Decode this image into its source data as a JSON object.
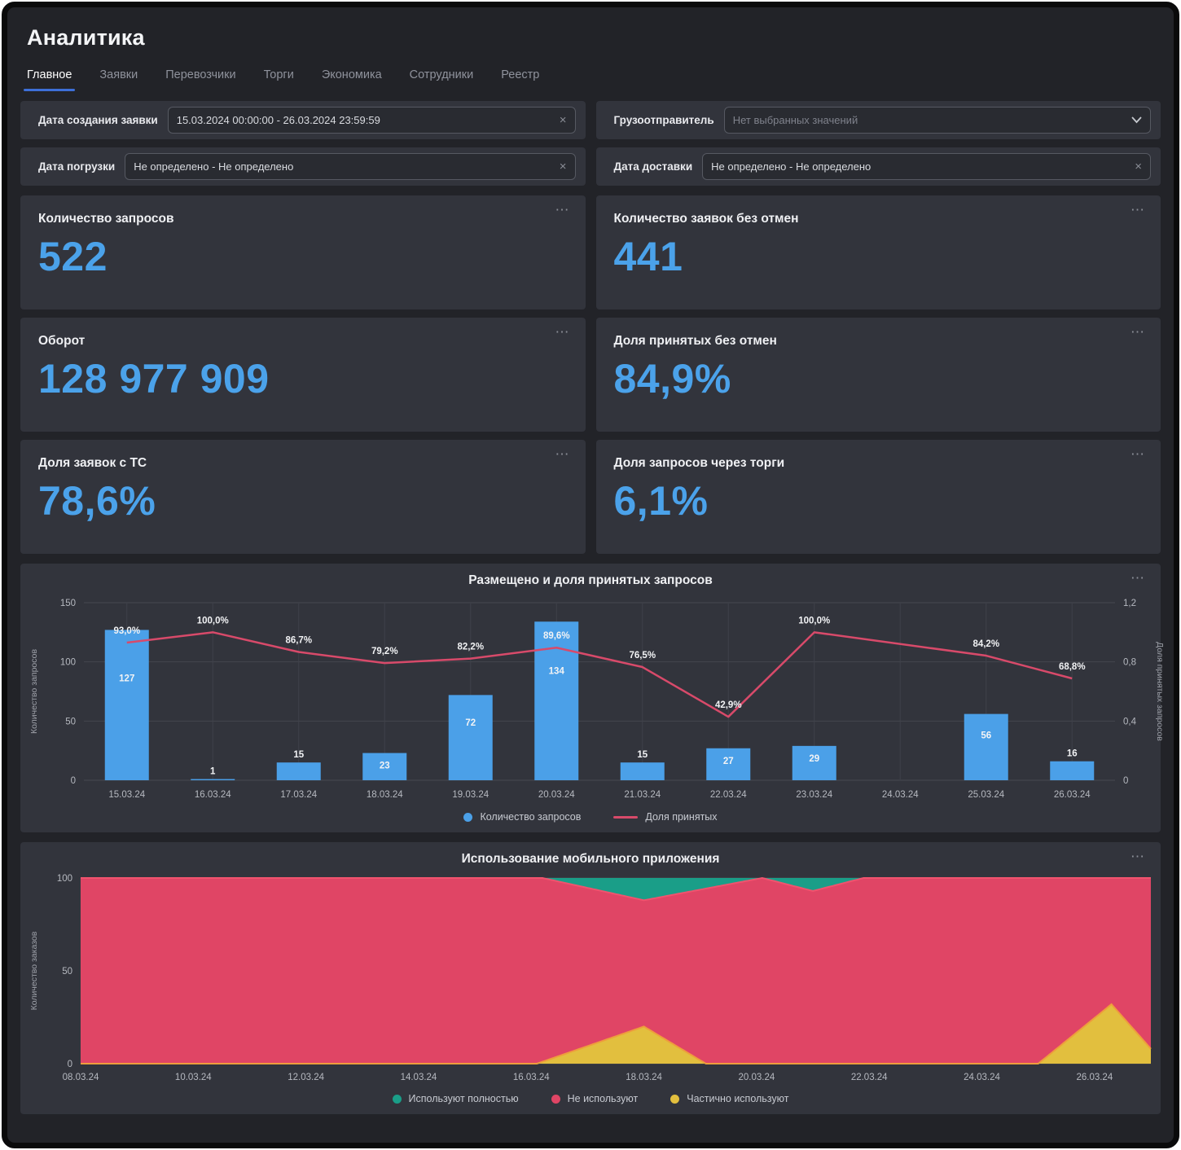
{
  "page": {
    "title": "Аналитика"
  },
  "tabs": [
    {
      "label": "Главное",
      "active": true
    },
    {
      "label": "Заявки",
      "active": false
    },
    {
      "label": "Перевозчики",
      "active": false
    },
    {
      "label": "Торги",
      "active": false
    },
    {
      "label": "Экономика",
      "active": false
    },
    {
      "label": "Сотрудники",
      "active": false
    },
    {
      "label": "Реестр",
      "active": false
    }
  ],
  "filters": [
    {
      "label": "Дата создания заявки",
      "value": "15.03.2024 00:00:00 - 26.03.2024 23:59:59",
      "is_placeholder": false,
      "icon": "clear"
    },
    {
      "label": "Грузоотправитель",
      "value": "Нет выбранных значений",
      "is_placeholder": true,
      "icon": "chevron"
    },
    {
      "label": "Дата погрузки",
      "value": "Не определено - Не определено",
      "is_placeholder": false,
      "icon": "clear"
    },
    {
      "label": "Дата доставки",
      "value": "Не определено - Не определено",
      "is_placeholder": false,
      "icon": "clear"
    }
  ],
  "kpi_cards": [
    {
      "title": "Количество запросов",
      "value": "522"
    },
    {
      "title": "Количество заявок без отмен",
      "value": "441"
    },
    {
      "title": "Оборот",
      "value": "128 977 909"
    },
    {
      "title": "Доля принятых без отмен",
      "value": "84,9%"
    },
    {
      "title": "Доля заявок с ТС",
      "value": "78,6%"
    },
    {
      "title": "Доля запросов через торги",
      "value": "6,1%"
    }
  ],
  "colors": {
    "accent_blue": "#4ba2ea",
    "bar_blue": "#4ba0e8",
    "line_red": "#d84a6a",
    "area_red": "#e04565",
    "area_green": "#1a9e88",
    "area_yellow": "#e2bf3e",
    "area_yellow_stroke": "#ee9d3c",
    "grid": "#45474f",
    "tick_text": "#b6b9c0"
  },
  "chart_data": [
    {
      "id": "requests",
      "type": "bar",
      "title": "Размещено и доля принятых запросов",
      "categories": [
        "15.03.24",
        "16.03.24",
        "17.03.24",
        "18.03.24",
        "19.03.24",
        "20.03.24",
        "21.03.24",
        "22.03.24",
        "23.03.24",
        "24.03.24",
        "25.03.24",
        "26.03.24"
      ],
      "series": [
        {
          "name": "Количество запросов",
          "kind": "bar",
          "color": "#4ba0e8",
          "values": [
            127,
            1,
            15,
            23,
            72,
            134,
            15,
            27,
            29,
            null,
            56,
            16
          ]
        },
        {
          "name": "Доля принятых",
          "kind": "line",
          "color": "#d84a6a",
          "values": [
            0.93,
            1.0,
            0.867,
            0.792,
            0.822,
            0.896,
            0.765,
            0.429,
            1.0,
            null,
            0.842,
            0.688
          ],
          "labels": [
            "93,0%",
            "100,0%",
            "86,7%",
            "79,2%",
            "82,2%",
            "89,6%",
            "76,5%",
            "42,9%",
            "100,0%",
            null,
            "84,2%",
            "68,8%"
          ]
        }
      ],
      "ylabel_left": "Количество запросов",
      "ylim_left": [
        0,
        150
      ],
      "yticks_left": [
        0,
        50,
        100,
        150
      ],
      "ylabel_right": "Доля принятых запросов",
      "ylim_right": [
        0,
        1.2
      ],
      "yticks_right_values": [
        0,
        0.4,
        0.8,
        1.2
      ],
      "yticks_right_labels": [
        "0",
        "0,4",
        "0,8",
        "1,2"
      ],
      "legend": [
        {
          "label": "Количество запросов",
          "swatch": "dot",
          "color": "#4ba0e8"
        },
        {
          "label": "Доля принятых",
          "swatch": "line",
          "color": "#d84a6a"
        }
      ]
    },
    {
      "id": "mobile-app-usage",
      "type": "area",
      "title": "Использование мобильного приложения",
      "ylabel": "Количество заказов",
      "ylim": [
        0,
        100
      ],
      "yticks": [
        0,
        50,
        100
      ],
      "x_domain": [
        8,
        27
      ],
      "xtick_values": [
        8,
        10,
        12,
        14,
        16,
        18,
        20,
        22,
        24,
        26
      ],
      "xtick_labels": [
        "08.03.24",
        "10.03.24",
        "12.03.24",
        "14.03.24",
        "16.03.24",
        "18.03.24",
        "20.03.24",
        "22.03.24",
        "24.03.24",
        "26.03.24"
      ],
      "series": [
        {
          "name": "Используют полностью",
          "role": "top",
          "color": "#1a9e88",
          "points": [
            [
              8,
              0
            ],
            [
              16.2,
              0
            ],
            [
              18,
              12
            ],
            [
              20.1,
              0
            ],
            [
              21,
              7
            ],
            [
              21.9,
              0
            ],
            [
              27,
              0
            ]
          ]
        },
        {
          "name": "Не используют",
          "role": "remainder",
          "color": "#e04565",
          "stroke": "#f0536e"
        },
        {
          "name": "Частично используют",
          "role": "bottom",
          "color": "#e2bf3e",
          "stroke": "#ee9d3c",
          "points": [
            [
              8,
              0
            ],
            [
              16.1,
              0
            ],
            [
              18,
              20
            ],
            [
              19.1,
              0
            ],
            [
              25,
              0
            ],
            [
              26.3,
              32
            ],
            [
              27,
              8
            ]
          ]
        }
      ],
      "legend": [
        {
          "label": "Используют полностью",
          "swatch": "dot",
          "color": "#1a9e88"
        },
        {
          "label": "Не используют",
          "swatch": "dot",
          "color": "#e04565"
        },
        {
          "label": "Частично используют",
          "swatch": "dot",
          "color": "#e2bf3e"
        }
      ]
    }
  ]
}
